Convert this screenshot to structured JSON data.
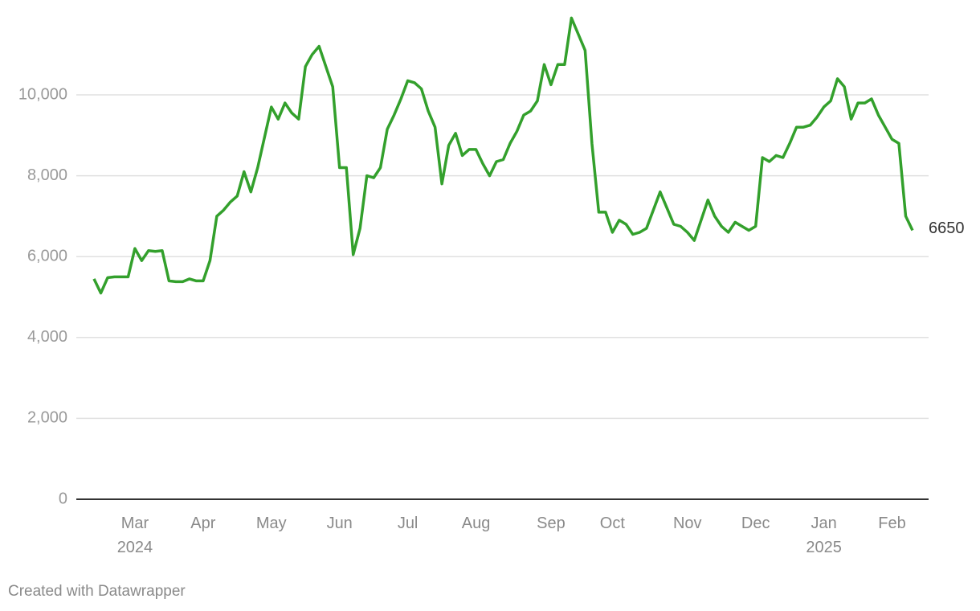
{
  "chart_data": {
    "type": "line",
    "categories": [
      null,
      null,
      null,
      null,
      null,
      null,
      "Mar\n2024",
      null,
      null,
      null,
      null,
      null,
      null,
      null,
      null,
      null,
      "Apr",
      null,
      null,
      null,
      null,
      null,
      null,
      null,
      null,
      null,
      "May",
      null,
      null,
      null,
      null,
      null,
      null,
      null,
      null,
      null,
      "Jun",
      null,
      null,
      null,
      null,
      null,
      null,
      null,
      null,
      null,
      "Jul",
      null,
      null,
      null,
      null,
      null,
      null,
      null,
      null,
      null,
      "Aug",
      null,
      null,
      null,
      null,
      null,
      null,
      null,
      null,
      null,
      null,
      "Sep",
      null,
      null,
      null,
      null,
      null,
      null,
      null,
      null,
      "Oct",
      null,
      null,
      null,
      null,
      null,
      null,
      null,
      null,
      null,
      null,
      "Nov",
      null,
      null,
      null,
      null,
      null,
      null,
      null,
      null,
      null,
      "Dec",
      null,
      null,
      null,
      null,
      null,
      null,
      null,
      null,
      null,
      "Jan\n2025",
      null,
      null,
      null,
      null,
      null,
      null,
      null,
      null,
      null,
      "Feb",
      null,
      null,
      null
    ],
    "values": [
      5450,
      5100,
      5480,
      5500,
      5500,
      5500,
      6200,
      5900,
      6150,
      6130,
      6150,
      5400,
      5380,
      5380,
      5450,
      5400,
      5400,
      5900,
      7000,
      7150,
      7350,
      7500,
      8100,
      7600,
      8200,
      8950,
      9700,
      9400,
      9800,
      9550,
      9400,
      10700,
      11000,
      11200,
      10700,
      10200,
      8200,
      8200,
      6050,
      6700,
      8000,
      7950,
      8200,
      9150,
      9500,
      9900,
      10350,
      10300,
      10150,
      9600,
      9200,
      7800,
      8750,
      9050,
      8500,
      8650,
      8650,
      8300,
      8000,
      8350,
      8400,
      8800,
      9100,
      9500,
      9600,
      9850,
      10750,
      10250,
      10750,
      10750,
      11900,
      11500,
      11100,
      8800,
      7100,
      7100,
      6600,
      6900,
      6800,
      6550,
      6600,
      6700,
      7150,
      7600,
      7200,
      6800,
      6750,
      6600,
      6400,
      6900,
      7400,
      7000,
      6750,
      6600,
      6850,
      6750,
      6650,
      6750,
      8450,
      8350,
      8500,
      8450,
      8800,
      9200,
      9200,
      9250,
      9450,
      9700,
      9850,
      10400,
      10200,
      9400,
      9800,
      9800,
      9900,
      9500,
      9200,
      8900,
      8800,
      7000,
      6650
    ],
    "color": "#33a02c",
    "ylim": [
      0,
      12000
    ],
    "yticks": [
      0,
      {
        "value": 2000,
        "label": "2,000"
      },
      {
        "value": 4000,
        "label": "4,000"
      },
      {
        "value": 6000,
        "label": "6,000"
      },
      {
        "value": 8000,
        "label": "8,000"
      },
      {
        "value": 10000,
        "label": "10,000"
      }
    ],
    "grid": true,
    "source": "Created with Datawrapper"
  }
}
